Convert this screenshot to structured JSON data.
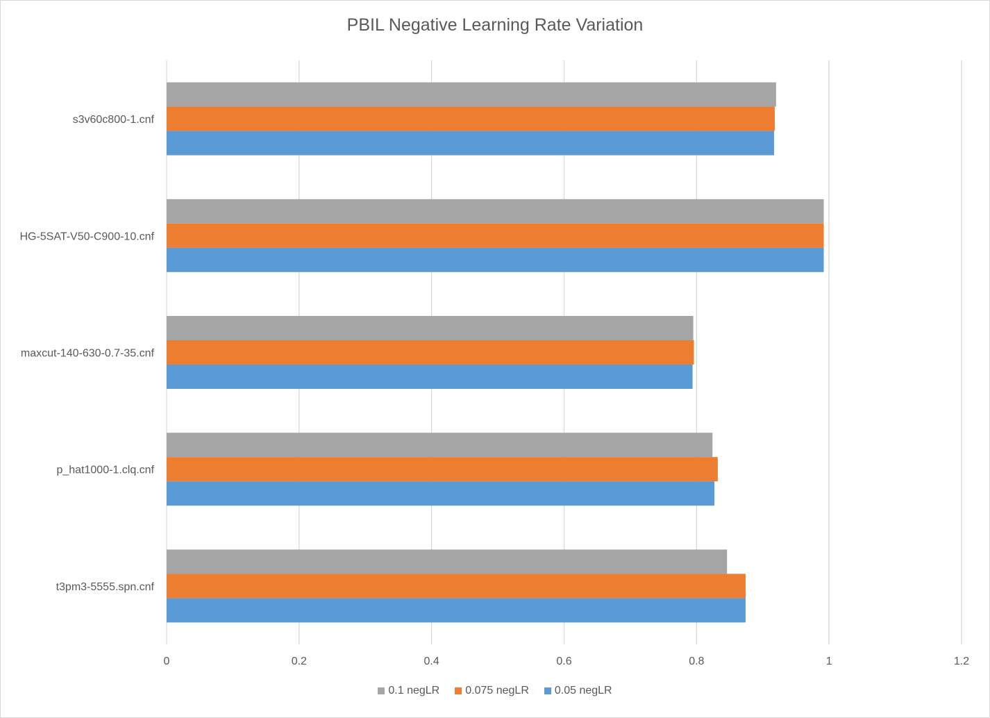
{
  "chart_data": {
    "type": "bar",
    "orientation": "horizontal",
    "title": "PBIL Negative Learning Rate Variation",
    "categories": [
      "s3v60c800-1.cnf",
      "HG-5SAT-V50-C900-10.cnf",
      "maxcut-140-630-0.7-35.cnf",
      "p_hat1000-1.clq.cnf",
      "t3pm3-5555.spn.cnf"
    ],
    "series": [
      {
        "name": "0.1 negLR",
        "color": "#a5a5a5",
        "values": [
          0.92,
          0.992,
          0.795,
          0.824,
          0.846
        ]
      },
      {
        "name": "0.075 negLR",
        "color": "#ed7d31",
        "values": [
          0.918,
          0.992,
          0.796,
          0.832,
          0.874
        ]
      },
      {
        "name": "0.05 negLR",
        "color": "#5b9bd5",
        "values": [
          0.917,
          0.992,
          0.794,
          0.827,
          0.874
        ]
      }
    ],
    "xlim": [
      0,
      1.2
    ],
    "xticks": [
      "0",
      "0.2",
      "0.4",
      "0.6",
      "0.8",
      "1",
      "1.2"
    ],
    "grid": true,
    "legend": "bottom"
  }
}
